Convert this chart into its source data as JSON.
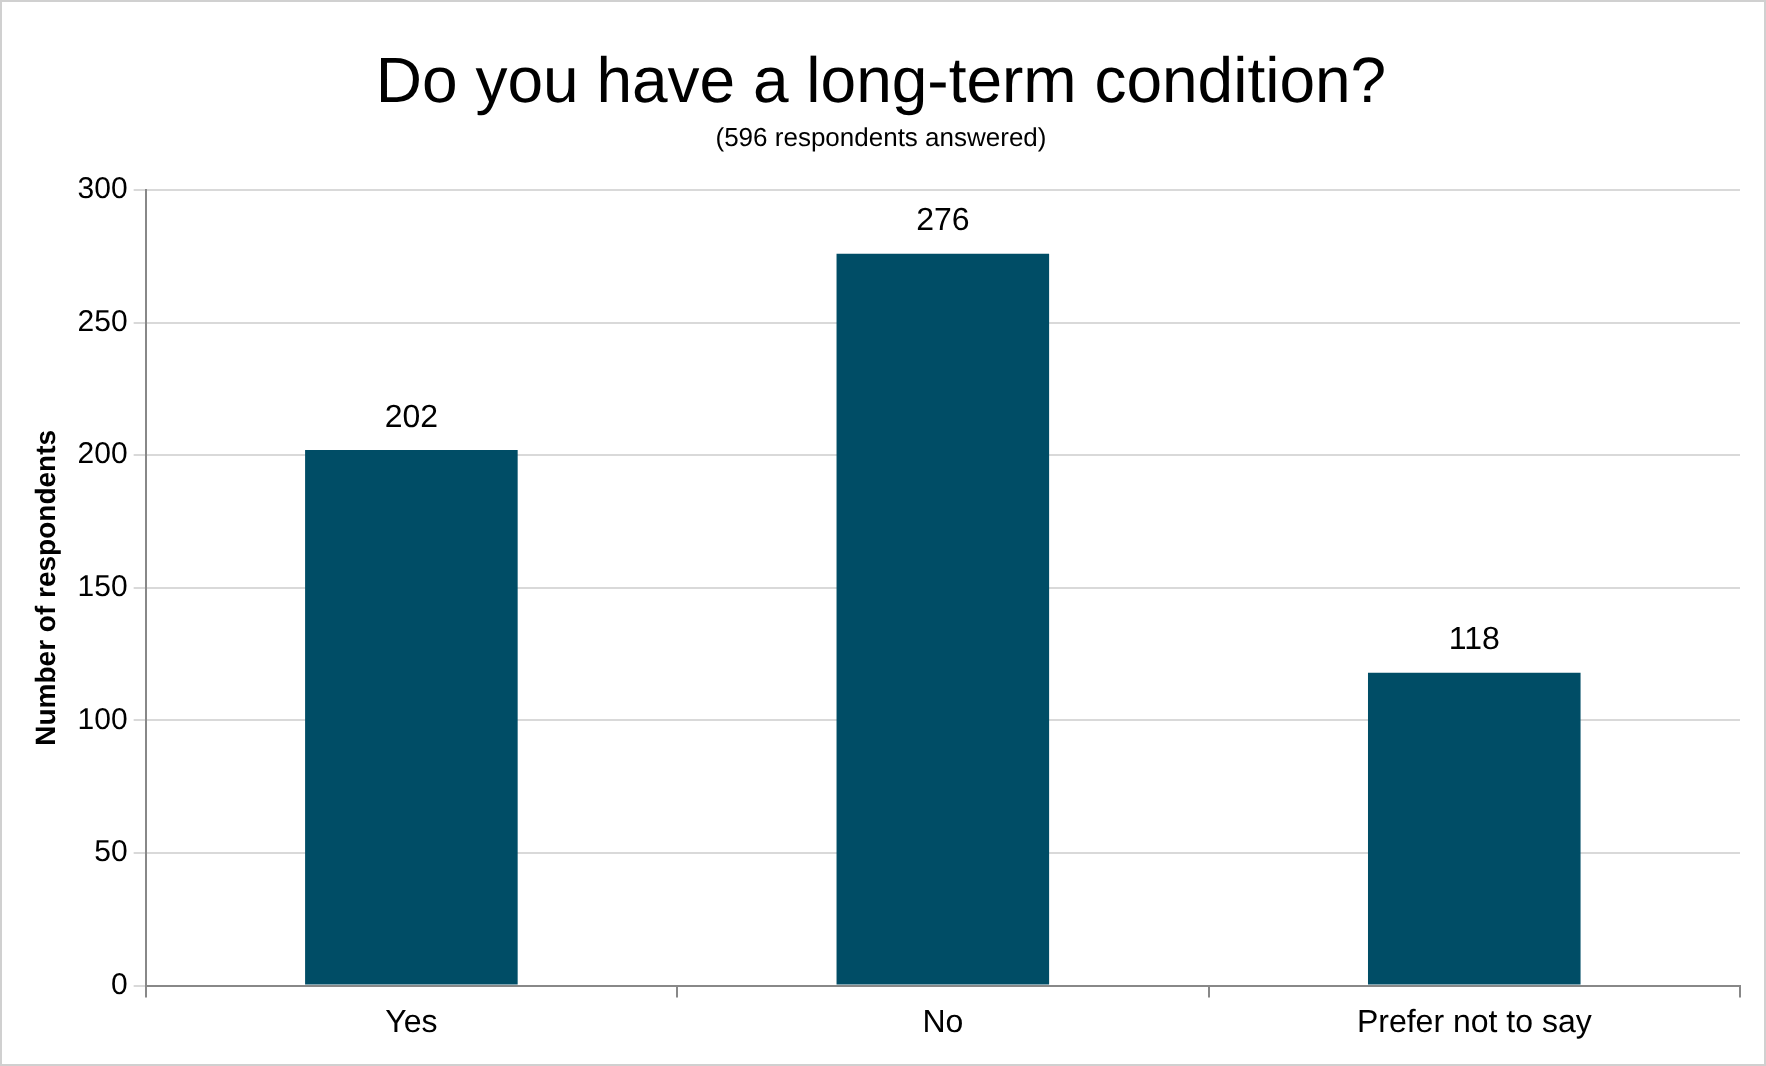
{
  "chart_data": {
    "type": "bar",
    "title": "Do you have a long-term condition?",
    "subtitle": "(596 respondents answered)",
    "ylabel": "Number of respondents",
    "categories": [
      "Yes",
      "No",
      "Prefer not to say"
    ],
    "values": [
      202,
      276,
      118
    ],
    "color": "#004d66",
    "ylim": [
      0,
      300
    ],
    "yticks": [
      0,
      50,
      100,
      150,
      200,
      250,
      300
    ],
    "grid": "y",
    "data_labels": true,
    "legend": false
  }
}
